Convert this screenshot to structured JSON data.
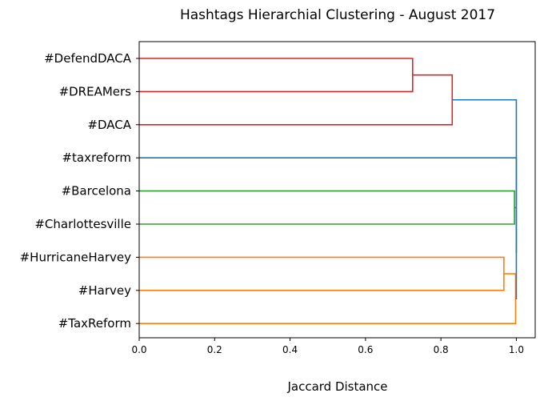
{
  "chart_data": {
    "type": "dendrogram",
    "title": "Hashtags Hierarchial Clustering - August 2017",
    "xlabel": "Jaccard Distance",
    "ylabel": "",
    "xlim": [
      0.0,
      1.05
    ],
    "xticks": [
      "0.0",
      "0.2",
      "0.4",
      "0.6",
      "0.8",
      "1.0"
    ],
    "xtick_values": [
      0.0,
      0.2,
      0.4,
      0.6,
      0.8,
      1.0
    ],
    "grid": false,
    "orientation": "horizontal",
    "leaves": [
      "#DefendDACA",
      "#DREAMers",
      "#DACA",
      "#taxreform",
      "#Barcelona",
      "#Charlottesville",
      "#HurricaneHarvey",
      "#Harvey",
      "#TaxReform"
    ],
    "merges": [
      {
        "left": "#DefendDACA",
        "right": "#DREAMers",
        "distance": 0.725,
        "color": "#d62728"
      },
      {
        "left": "#DefendDACA,#DREAMers",
        "right": "#DACA",
        "distance": 0.83,
        "color": "#d62728"
      },
      {
        "left": "#Barcelona",
        "right": "#Charlottesville",
        "distance": 0.995,
        "color": "#2ca02c"
      },
      {
        "left": "#HurricaneHarvey",
        "right": "#Harvey",
        "distance": 0.967,
        "color": "#ff7f0e"
      },
      {
        "left": "#HurricaneHarvey,#Harvey",
        "right": "#TaxReform",
        "distance": 0.998,
        "color": "#ff7f0e"
      },
      {
        "left": "#Barcelona,#Charlottesville",
        "right": "#HurricaneHarvey,#Harvey,#TaxReform",
        "distance": 1.0,
        "color": "#1f77b4"
      },
      {
        "left": "#taxreform",
        "right": "#Barcelona,#Charlottesville,#HurricaneHarvey,#Harvey,#TaxReform",
        "distance": 1.0,
        "color": "#1f77b4"
      },
      {
        "left": "#DefendDACA,#DREAMers,#DACA",
        "right": "#taxreform,#Barcelona,#Charlottesville,#HurricaneHarvey,#Harvey,#TaxReform",
        "distance": 1.0,
        "color": "#1f77b4"
      }
    ],
    "colors": {
      "red": "#d62728",
      "blue": "#1f77b4",
      "green": "#2ca02c",
      "orange": "#ff7f0e"
    }
  }
}
